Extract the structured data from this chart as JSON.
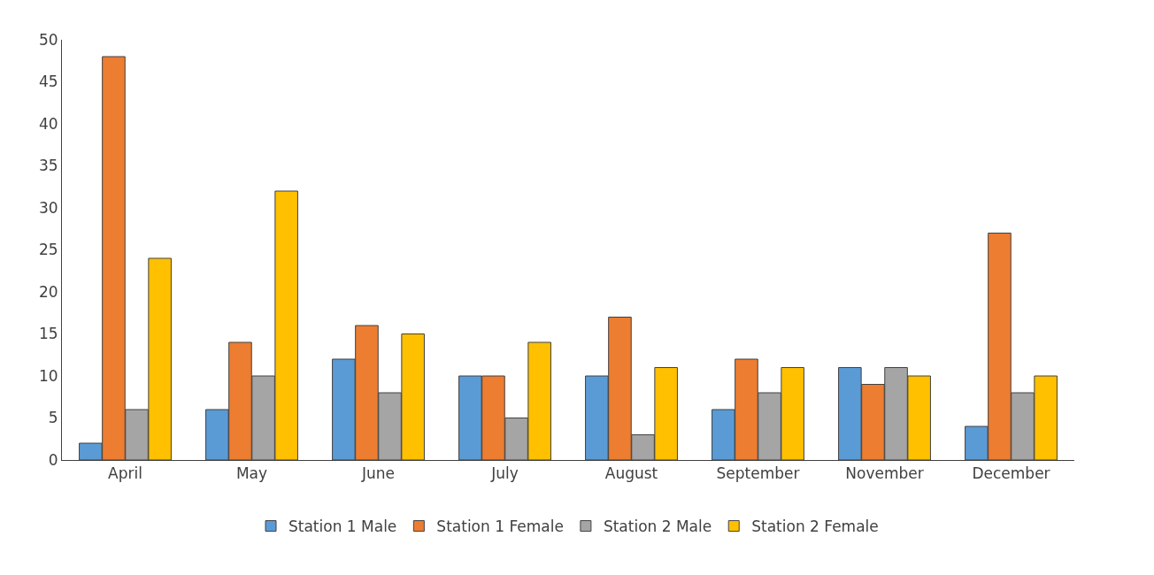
{
  "chart_data": {
    "type": "bar",
    "categories": [
      "April",
      "May",
      "June",
      "July",
      "August",
      "September",
      "November",
      "December"
    ],
    "series": [
      {
        "name": "Station 1 Male",
        "color": "#5b9bd5",
        "values": [
          2,
          6,
          12,
          10,
          10,
          6,
          11,
          4
        ]
      },
      {
        "name": "Station 1 Female",
        "color": "#ed7d31",
        "values": [
          48,
          14,
          16,
          10,
          17,
          12,
          9,
          27
        ]
      },
      {
        "name": "Station 2 Male",
        "color": "#a5a5a5",
        "values": [
          6,
          10,
          8,
          5,
          3,
          8,
          11,
          8
        ]
      },
      {
        "name": "Station 2 Female",
        "color": "#ffc000",
        "values": [
          24,
          32,
          15,
          14,
          11,
          11,
          10,
          10
        ]
      }
    ],
    "ylim": [
      0,
      50
    ],
    "yticks": [
      0,
      5,
      10,
      15,
      20,
      25,
      30,
      35,
      40,
      45,
      50
    ],
    "grid": false,
    "legend": "bottom"
  }
}
